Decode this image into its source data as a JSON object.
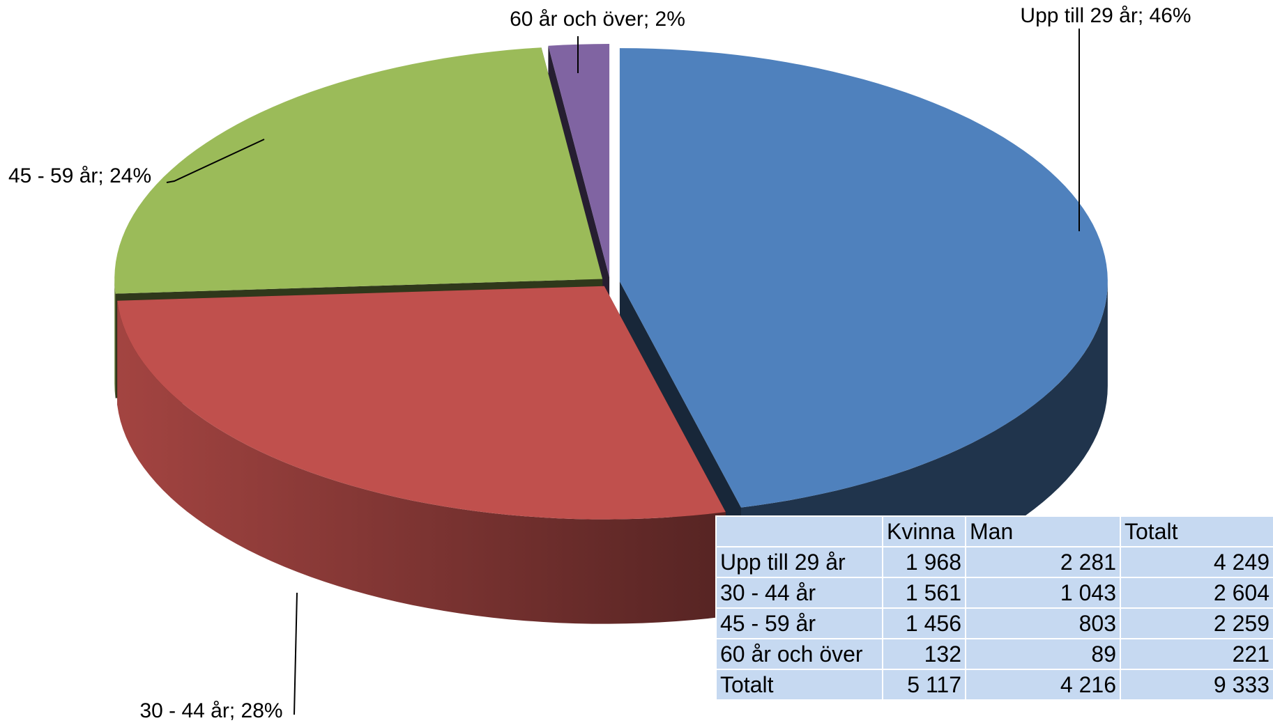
{
  "chart_data": {
    "type": "pie",
    "categories": [
      "Upp till 29 år",
      "30 - 44 år",
      "45 - 59 år",
      "60 år och över"
    ],
    "values": [
      46,
      28,
      24,
      2
    ],
    "value_labels": [
      "Upp till 29 år; 46%",
      "30 - 44 år; 28%",
      "45 - 59 år; 24%",
      "60 år och över; 2%"
    ],
    "colors": [
      "#4f81bd",
      "#c0504d",
      "#9bbb59",
      "#8064a2"
    ]
  },
  "table": {
    "columns": [
      "Kvinna",
      "Man",
      "Totalt"
    ],
    "rows": [
      [
        "Upp till 29 år",
        "1 968",
        "2 281",
        "4 249"
      ],
      [
        "30 - 44 år",
        "1 561",
        "1 043",
        "2 604"
      ],
      [
        "45 - 59 år",
        "1 456",
        "803",
        "2 259"
      ],
      [
        "60 år och över",
        "132",
        "89",
        "221"
      ],
      [
        "Totalt",
        "5 117",
        "4 216",
        "9 333"
      ]
    ]
  }
}
